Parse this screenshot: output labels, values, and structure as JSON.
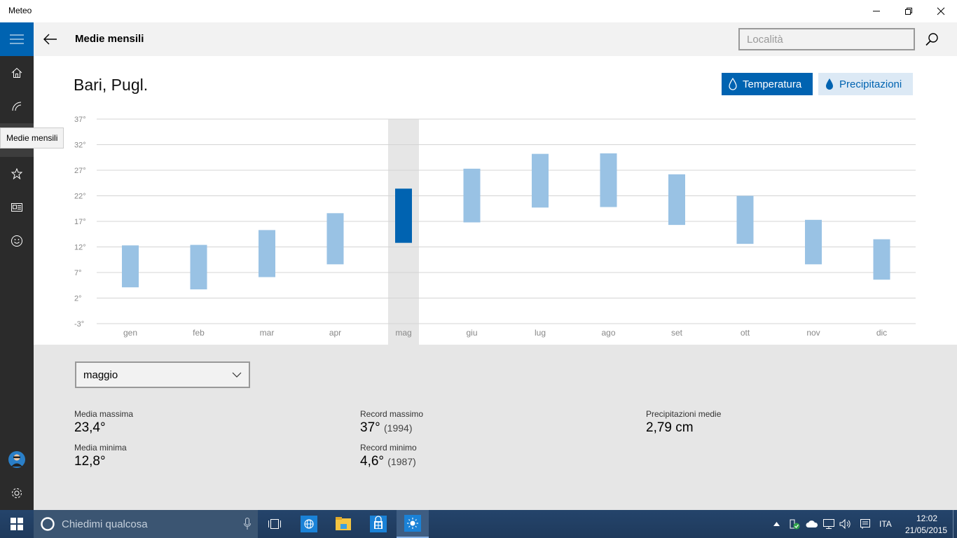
{
  "window": {
    "title": "Meteo"
  },
  "nav": {
    "tooltip": "Medie mensili",
    "items": [
      {
        "icon": "home-icon"
      },
      {
        "icon": "radar-icon"
      },
      {
        "icon": "monthly-averages-icon"
      },
      {
        "icon": "favorites-star-icon"
      },
      {
        "icon": "news-icon"
      },
      {
        "icon": "feedback-smiley-icon"
      },
      {
        "icon": "user-avatar"
      },
      {
        "icon": "gear-icon"
      }
    ]
  },
  "header": {
    "title": "Medie mensili",
    "search_placeholder": "Località"
  },
  "main": {
    "location": "Bari, Pugl.",
    "toggle_temperature": "Temperatura",
    "toggle_precipitation": "Precipitazioni"
  },
  "colors": {
    "accent": "#0063b1",
    "bar": "#99c2e4",
    "bar_selected": "#0063b1",
    "selected_column": "#e6e6e6"
  },
  "chart_data": {
    "type": "bar",
    "subtype": "range",
    "categories": [
      "gen",
      "feb",
      "mar",
      "apr",
      "mag",
      "giu",
      "lug",
      "ago",
      "set",
      "ott",
      "nov",
      "dic"
    ],
    "series": [
      {
        "name": "Media minima",
        "values": [
          4.1,
          3.7,
          6.1,
          8.6,
          12.8,
          16.8,
          19.7,
          19.8,
          16.3,
          12.6,
          8.6,
          5.6
        ]
      },
      {
        "name": "Media massima",
        "values": [
          12.3,
          12.4,
          15.3,
          18.6,
          23.4,
          27.3,
          30.2,
          30.3,
          26.2,
          22.0,
          17.3,
          13.5
        ]
      }
    ],
    "y_ticks": [
      "37°",
      "32°",
      "27°",
      "22°",
      "17°",
      "12°",
      "7°",
      "2°",
      "-3°"
    ],
    "ylim": [
      -3,
      37
    ],
    "selected_index": 4,
    "grid": true
  },
  "details": {
    "selected_month": "maggio",
    "avg_max_label": "Media massima",
    "avg_max_value": "23,4°",
    "avg_min_label": "Media minima",
    "avg_min_value": "12,8°",
    "record_max_label": "Record massimo",
    "record_max_value": "37°",
    "record_max_year": "(1994)",
    "record_min_label": "Record minimo",
    "record_min_value": "4,6°",
    "record_min_year": "(1987)",
    "precip_label": "Precipitazioni medie",
    "precip_value": "2,79 cm"
  },
  "taskbar": {
    "search_placeholder": "Chiedimi qualcosa",
    "language": "ITA",
    "time": "12:02",
    "date": "21/05/2015"
  }
}
